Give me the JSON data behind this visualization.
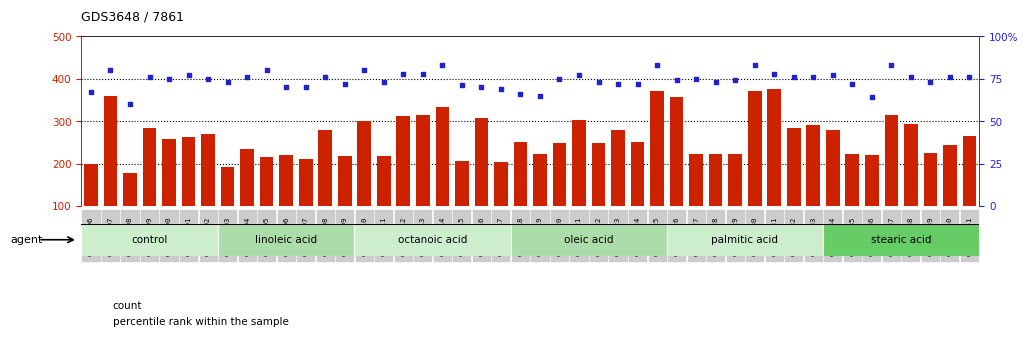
{
  "title": "GDS3648 / 7861",
  "samples": [
    "GSM525196",
    "GSM525197",
    "GSM525198",
    "GSM525199",
    "GSM525200",
    "GSM525201",
    "GSM525202",
    "GSM525203",
    "GSM525204",
    "GSM525205",
    "GSM525206",
    "GSM525207",
    "GSM525208",
    "GSM525209",
    "GSM525210",
    "GSM525211",
    "GSM525212",
    "GSM525213",
    "GSM525214",
    "GSM525215",
    "GSM525216",
    "GSM525217",
    "GSM525218",
    "GSM525219",
    "GSM525220",
    "GSM525221",
    "GSM525222",
    "GSM525223",
    "GSM525224",
    "GSM525225",
    "GSM525226",
    "GSM525227",
    "GSM525228",
    "GSM525229",
    "GSM525230",
    "GSM525231",
    "GSM525232",
    "GSM525233",
    "GSM525234",
    "GSM525235",
    "GSM525236",
    "GSM525237",
    "GSM525238",
    "GSM525239",
    "GSM525240",
    "GSM525241"
  ],
  "counts": [
    200,
    360,
    178,
    285,
    257,
    262,
    270,
    192,
    235,
    215,
    220,
    210,
    280,
    218,
    300,
    218,
    313,
    315,
    333,
    207,
    308,
    204,
    250,
    222,
    248,
    303,
    248,
    280,
    250,
    370,
    356,
    222,
    222,
    222,
    370,
    375,
    283,
    290,
    278,
    222,
    220,
    315,
    293,
    225,
    245,
    265
  ],
  "percentile_ranks": [
    67,
    80,
    60,
    76,
    75,
    77,
    75,
    73,
    76,
    80,
    70,
    70,
    76,
    72,
    80,
    73,
    78,
    78,
    83,
    71,
    70,
    69,
    66,
    65,
    75,
    77,
    73,
    72,
    72,
    83,
    74,
    75,
    73,
    74,
    83,
    78,
    76,
    76,
    77,
    72,
    64,
    83,
    76,
    73,
    76,
    76
  ],
  "groups": [
    {
      "label": "control",
      "start": 0,
      "end": 7,
      "color": "#CCEECC"
    },
    {
      "label": "linoleic acid",
      "start": 7,
      "end": 14,
      "color": "#AADDAA"
    },
    {
      "label": "octanoic acid",
      "start": 14,
      "end": 22,
      "color": "#CCEECC"
    },
    {
      "label": "oleic acid",
      "start": 22,
      "end": 30,
      "color": "#AADDAA"
    },
    {
      "label": "palmitic acid",
      "start": 30,
      "end": 38,
      "color": "#CCEECC"
    },
    {
      "label": "stearic acid",
      "start": 38,
      "end": 46,
      "color": "#66CC66"
    }
  ],
  "bar_color": "#CC2200",
  "dot_color": "#2222CC",
  "tick_bg_color": "#CCCCCC",
  "ylim_left": [
    100,
    500
  ],
  "ylim_right": [
    0,
    100
  ],
  "yticks_left": [
    100,
    200,
    300,
    400,
    500
  ],
  "yticks_right": [
    0,
    25,
    50,
    75,
    100
  ],
  "grid_lines": [
    200,
    300,
    400
  ],
  "legend_count_label": "count",
  "legend_pct_label": "percentile rank within the sample",
  "agent_label": "agent"
}
